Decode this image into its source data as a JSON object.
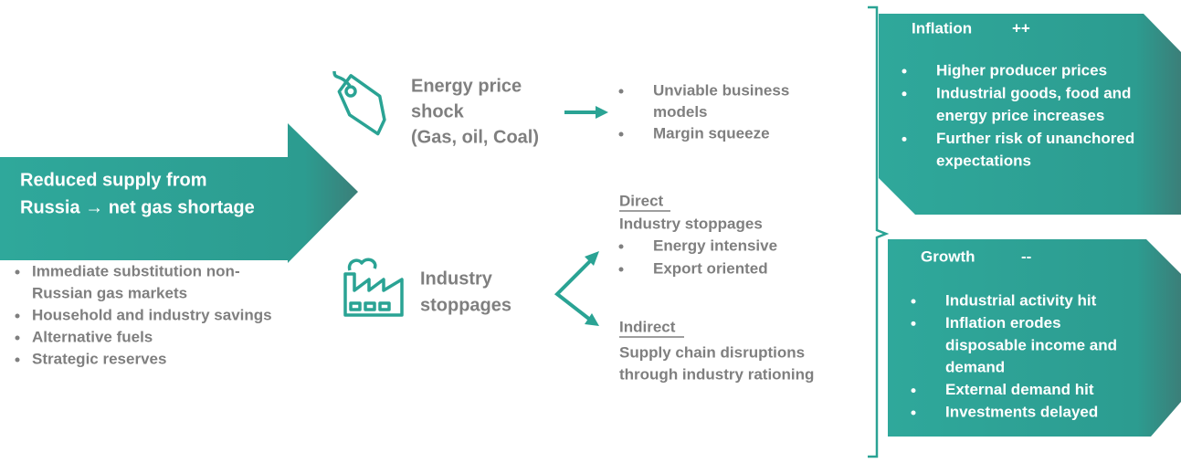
{
  "main_arrow": {
    "lines": [
      "Reduced supply from",
      "Russia → net gas shortage"
    ]
  },
  "responses": [
    [
      "Immediate substitution non-",
      "Russian gas markets"
    ],
    [
      "Household and industry savings"
    ],
    [
      "Alternative fuels"
    ],
    [
      "Strategic reserves"
    ]
  ],
  "energy_shock": {
    "label": [
      "Energy price",
      "shock",
      "(Gas, oil, Coal)"
    ],
    "effects": [
      [
        "Unviable business",
        "models"
      ],
      [
        "Margin squeeze"
      ]
    ]
  },
  "industry": {
    "label": [
      "Industry",
      "stoppages"
    ],
    "direct": {
      "heading": "Direct",
      "subheading": "Industry stoppages",
      "items": [
        [
          "Energy intensive"
        ],
        [
          "Export oriented"
        ]
      ]
    },
    "indirect": {
      "heading": "Indirect",
      "lines": [
        "Supply chain disruptions",
        "through industry rationing"
      ]
    }
  },
  "inflation": {
    "title": "Inflation",
    "sign": "++",
    "items": [
      [
        "Higher producer prices"
      ],
      [
        "Industrial goods, food and",
        "energy price increases"
      ],
      [
        "Further risk of unanchored",
        "expectations"
      ]
    ]
  },
  "growth": {
    "title": "Growth",
    "sign": "--",
    "items": [
      [
        "Industrial activity hit"
      ],
      [
        "Inflation erodes",
        "disposable income and",
        "demand"
      ],
      [
        "External demand hit"
      ],
      [
        "Investments delayed"
      ]
    ]
  }
}
